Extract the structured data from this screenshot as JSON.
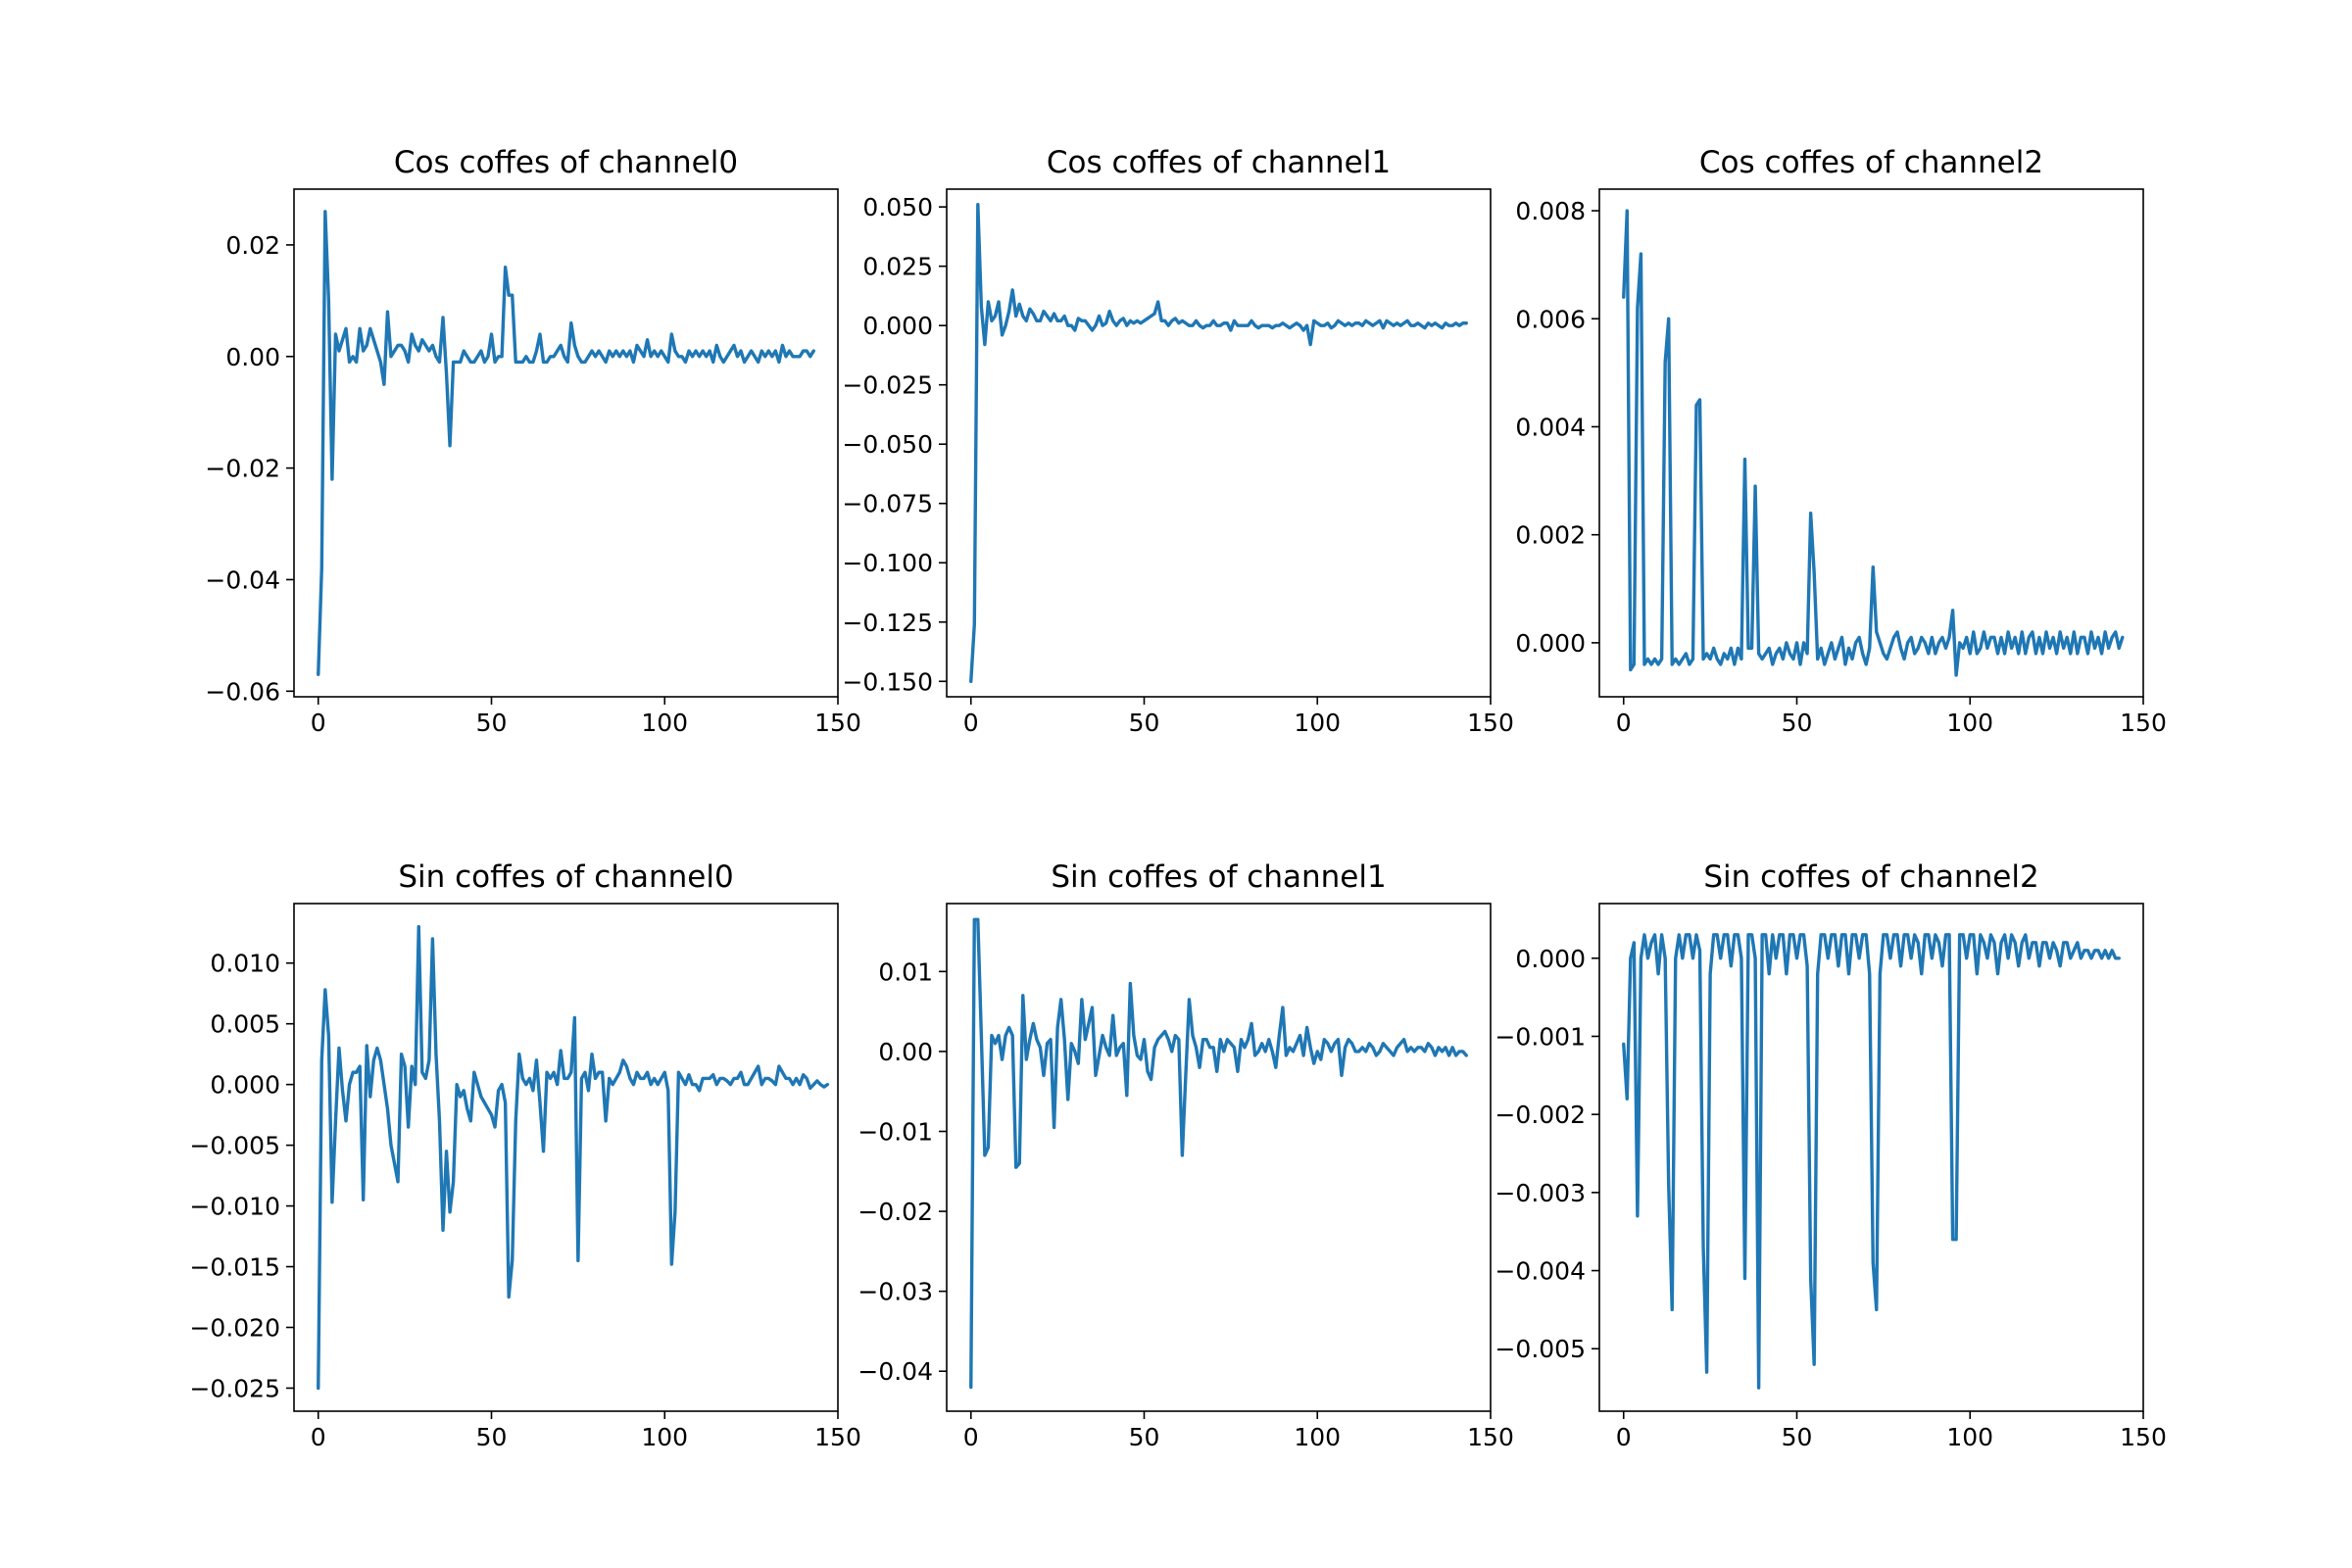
{
  "colors": {
    "line": "#1f77b4",
    "background": "#ffffff",
    "axes": "#000000"
  },
  "chart_data": [
    {
      "type": "line",
      "title": "Cos coffes of channel0",
      "xlabel": "",
      "ylabel": "",
      "xlim": [
        -7,
        150
      ],
      "ylim": [
        -0.061,
        0.03
      ],
      "xticks": [
        0,
        50,
        100,
        150
      ],
      "yticks": [
        0.02,
        0.0,
        -0.02,
        -0.04,
        -0.06
      ],
      "ytick_labels": [
        "0.02",
        "0.00",
        "−0.02",
        "−0.04",
        "−0.06"
      ],
      "x_start": 0,
      "values": [
        -0.057,
        -0.038,
        0.026,
        0.01,
        -0.022,
        0.004,
        0.001,
        0.003,
        0.005,
        -0.001,
        0.0,
        -0.001,
        0.005,
        0.001,
        0.002,
        0.005,
        0.003,
        0.001,
        -0.001,
        -0.005,
        0.008,
        0.0,
        0.001,
        0.002,
        0.002,
        0.001,
        -0.001,
        0.004,
        0.002,
        0.001,
        0.003,
        0.002,
        0.001,
        0.002,
        0.0,
        -0.001,
        0.007,
        -0.003,
        -0.016,
        -0.001,
        -0.001,
        -0.001,
        0.001,
        0.0,
        -0.001,
        -0.001,
        0.0,
        0.001,
        -0.001,
        0.0,
        0.004,
        -0.001,
        0.0,
        0.0,
        0.016,
        0.011,
        0.011,
        -0.001,
        -0.001,
        -0.001,
        0.0,
        -0.001,
        -0.001,
        0.001,
        0.004,
        -0.001,
        -0.001,
        0.0,
        0.0,
        0.001,
        0.002,
        0.0,
        -0.001,
        0.006,
        0.002,
        0.0,
        -0.001,
        -0.001,
        0.0,
        0.001,
        0.0,
        0.001,
        0.0,
        -0.001,
        0.001,
        0.0,
        0.001,
        0.0,
        0.001,
        0.0,
        0.001,
        -0.001,
        0.002,
        0.001,
        0.0,
        0.003,
        0.0,
        0.001,
        0.0,
        0.001,
        0.0,
        -0.001,
        0.004,
        0.001,
        0.0,
        0.0,
        -0.001,
        0.001,
        0.0,
        0.001,
        0.0,
        0.001,
        0.0,
        0.001,
        -0.001,
        0.002,
        0.0,
        -0.001,
        0.0,
        0.001,
        0.002,
        0.0,
        0.001,
        -0.001,
        0.0,
        0.001,
        0.0,
        -0.001,
        0.001,
        0.0,
        0.001,
        0.0,
        0.001,
        -0.001,
        0.002,
        0.0,
        0.001,
        0.0,
        0.0,
        0.0,
        0.001,
        0.001,
        0.0,
        0.001
      ]
    },
    {
      "type": "line",
      "title": "Cos coffes of channel1",
      "xlabel": "",
      "ylabel": "",
      "xlim": [
        -7,
        150
      ],
      "ylim": [
        -0.1565,
        0.0575
      ],
      "xticks": [
        0,
        50,
        100,
        150
      ],
      "yticks": [
        0.05,
        0.025,
        0.0,
        -0.025,
        -0.05,
        -0.075,
        -0.1,
        -0.125,
        -0.15
      ],
      "ytick_labels": [
        "0.050",
        "0.025",
        "0.000",
        "−0.025",
        "−0.050",
        "−0.075",
        "−0.100",
        "−0.125",
        "−0.150"
      ],
      "x_start": 0,
      "values": [
        -0.15,
        -0.126,
        0.051,
        0.008,
        -0.008,
        0.01,
        0.002,
        0.004,
        0.01,
        -0.004,
        0.0,
        0.006,
        0.015,
        0.004,
        0.009,
        0.004,
        0.002,
        0.007,
        0.005,
        0.002,
        0.002,
        0.006,
        0.004,
        0.002,
        0.005,
        0.002,
        0.002,
        0.004,
        0.0,
        0.0,
        -0.002,
        0.003,
        0.002,
        0.002,
        0.0,
        -0.002,
        0.0,
        0.004,
        0.0,
        0.001,
        0.006,
        0.002,
        0.0,
        0.002,
        0.003,
        0.0,
        0.002,
        0.001,
        0.002,
        0.001,
        0.002,
        0.003,
        0.004,
        0.005,
        0.01,
        0.002,
        0.002,
        0.0,
        0.002,
        0.003,
        0.001,
        0.002,
        0.001,
        0.0,
        0.0,
        0.002,
        0.0,
        -0.001,
        0.0,
        0.0,
        0.002,
        0.0,
        0.0,
        0.001,
        0.001,
        -0.002,
        0.002,
        0.0,
        0.0,
        0.0,
        0.0,
        0.002,
        0.0,
        -0.001,
        0.0,
        0.0,
        0.0,
        -0.001,
        0.0,
        0.0,
        0.001,
        0.0,
        -0.001,
        0.0,
        0.001,
        0.0,
        -0.002,
        0.0,
        -0.008,
        0.002,
        0.001,
        0.0,
        0.0,
        0.001,
        -0.001,
        0.0,
        0.002,
        0.001,
        0.0,
        0.001,
        0.0,
        0.001,
        0.001,
        0.0,
        0.002,
        0.001,
        0.0,
        0.001,
        0.002,
        -0.001,
        0.002,
        0.001,
        0.0,
        0.001,
        0.0,
        0.001,
        0.002,
        0.0,
        0.0,
        0.001,
        0.0,
        -0.001,
        0.001,
        0.0,
        0.001,
        0.0,
        -0.001,
        0.001,
        0.0,
        0.0,
        0.001,
        0.0,
        0.001,
        0.001
      ]
    },
    {
      "type": "line",
      "title": "Cos coffes of channel2",
      "xlabel": "",
      "ylabel": "",
      "xlim": [
        -7,
        150
      ],
      "ylim": [
        -0.001,
        0.0084
      ],
      "xticks": [
        0,
        50,
        100,
        150
      ],
      "yticks": [
        0.008,
        0.006,
        0.004,
        0.002,
        0.0
      ],
      "ytick_labels": [
        "0.008",
        "0.006",
        "0.004",
        "0.002",
        "0.000"
      ],
      "x_start": 0,
      "values": [
        0.0064,
        0.008,
        -0.0005,
        -0.0004,
        0.0062,
        0.0072,
        -0.0004,
        -0.0003,
        -0.0004,
        -0.0003,
        -0.0004,
        -0.0003,
        0.0052,
        0.006,
        -0.0004,
        -0.0003,
        -0.0004,
        -0.0003,
        -0.0002,
        -0.0004,
        -0.0003,
        0.0044,
        0.0045,
        -0.0003,
        -0.0002,
        -0.0003,
        -0.0001,
        -0.0003,
        -0.0004,
        -0.0002,
        -0.0003,
        -0.0001,
        -0.0004,
        -0.0001,
        -0.0003,
        0.0034,
        -0.0001,
        -0.0001,
        0.0029,
        -0.0002,
        -0.0003,
        -0.0002,
        -0.0001,
        -0.0004,
        -0.0002,
        -0.0001,
        -0.0003,
        0.0,
        -0.0002,
        -0.0003,
        0.0,
        -0.0004,
        0.0,
        -0.0002,
        0.0024,
        0.0013,
        -0.0003,
        -0.0001,
        -0.0004,
        -0.0002,
        0.0,
        -0.0003,
        -0.0001,
        0.0001,
        -0.0004,
        -0.0001,
        -0.0003,
        0.0,
        0.0001,
        -0.0002,
        -0.0004,
        -0.0001,
        0.0014,
        0.0002,
        0.0,
        -0.0002,
        -0.0003,
        -0.0001,
        0.0001,
        0.0002,
        -0.0001,
        -0.0003,
        0.0,
        0.0001,
        -0.0002,
        -0.0001,
        0.0001,
        0.0,
        -0.0002,
        0.0001,
        -0.0002,
        0.0,
        0.0001,
        -0.0001,
        0.0001,
        0.0006,
        -0.0006,
        0.0,
        -0.0001,
        0.0001,
        -0.0002,
        0.0002,
        -0.0002,
        -0.0001,
        0.0002,
        -0.0001,
        0.0001,
        0.0001,
        -0.0002,
        0.0001,
        -0.0002,
        0.0002,
        -0.0001,
        0.0001,
        -0.0002,
        0.0002,
        -0.0002,
        0.0001,
        0.0002,
        -0.0002,
        0.0001,
        -0.0002,
        0.0002,
        -0.0001,
        0.0001,
        -0.0002,
        0.0002,
        -0.0001,
        0.0001,
        -0.0002,
        0.0002,
        -0.0002,
        0.0001,
        0.0001,
        -0.0002,
        0.0002,
        -0.0001,
        0.0001,
        -0.0002,
        0.0002,
        -0.0001,
        0.0001,
        0.0002,
        -0.0001,
        0.0001
      ]
    },
    {
      "type": "line",
      "title": "Sin coffes of channel0",
      "xlabel": "",
      "ylabel": "",
      "xlim": [
        -7,
        150
      ],
      "ylim": [
        -0.0269,
        0.0149
      ],
      "xticks": [
        0,
        50,
        100,
        150
      ],
      "yticks": [
        0.01,
        0.005,
        0.0,
        -0.005,
        -0.01,
        -0.015,
        -0.02,
        -0.025
      ],
      "ytick_labels": [
        "0.010",
        "0.005",
        "0.000",
        "−0.005",
        "−0.010",
        "−0.015",
        "−0.020",
        "−0.025"
      ],
      "x_start": 0,
      "values": [
        -0.025,
        0.002,
        0.0078,
        0.004,
        -0.0097,
        -0.003,
        0.003,
        -0.0005,
        -0.003,
        0.0,
        0.001,
        0.001,
        0.0015,
        -0.0095,
        0.0032,
        -0.001,
        0.002,
        0.003,
        0.002,
        0.0,
        -0.002,
        -0.005,
        -0.0065,
        -0.008,
        0.0025,
        0.0015,
        -0.0035,
        0.0015,
        0.0,
        0.013,
        0.001,
        0.0005,
        0.002,
        0.012,
        0.0025,
        -0.003,
        -0.012,
        -0.0055,
        -0.0105,
        -0.008,
        0.0,
        -0.001,
        -0.0005,
        -0.002,
        -0.003,
        0.001,
        0.0,
        -0.001,
        -0.0015,
        -0.002,
        -0.0025,
        -0.0035,
        -0.0005,
        0.0,
        -0.0015,
        -0.0175,
        -0.0145,
        -0.003,
        0.0025,
        0.0005,
        0.0,
        0.0005,
        -0.0005,
        0.002,
        -0.0015,
        -0.0055,
        0.001,
        0.0005,
        0.001,
        0.0,
        0.0028,
        0.0005,
        0.0005,
        0.001,
        0.0055,
        -0.0145,
        0.0005,
        0.001,
        -0.0005,
        0.0025,
        0.0005,
        0.001,
        0.001,
        -0.003,
        0.0005,
        0.0,
        0.0005,
        0.001,
        0.002,
        0.0015,
        0.0005,
        0.0,
        0.001,
        0.0005,
        0.0005,
        0.001,
        0.0,
        0.0005,
        0.0,
        0.0005,
        0.001,
        -0.0005,
        -0.0148,
        -0.0105,
        0.001,
        0.0005,
        0.0,
        0.0008,
        0.0,
        0.0,
        -0.0005,
        0.0005,
        0.0005,
        0.0005,
        0.0008,
        0.0,
        0.0005,
        0.0005,
        0.0003,
        0.0,
        0.0005,
        0.0005,
        0.001,
        0.0,
        0.0,
        0.0005,
        0.001,
        0.0015,
        0.0,
        0.0005,
        0.0005,
        0.0003,
        0.0,
        0.0015,
        0.001,
        0.0005,
        0.0005,
        0.0,
        0.0005,
        0.0,
        0.0008,
        0.0005,
        -0.0003,
        0.0,
        0.0003,
        0.0,
        -0.0002,
        0.0
      ]
    },
    {
      "type": "line",
      "title": "Sin coffes of channel1",
      "xlabel": "",
      "ylabel": "",
      "xlim": [
        -7,
        150
      ],
      "ylim": [
        -0.045,
        0.0185
      ],
      "xticks": [
        0,
        50,
        100,
        150
      ],
      "yticks": [
        0.01,
        0.0,
        -0.01,
        -0.02,
        -0.03,
        -0.04
      ],
      "ytick_labels": [
        "0.01",
        "0.00",
        "−0.01",
        "−0.02",
        "−0.03",
        "−0.04"
      ],
      "x_start": 0,
      "values": [
        -0.042,
        0.0165,
        0.0165,
        0.002,
        -0.013,
        -0.012,
        0.002,
        0.001,
        0.002,
        -0.001,
        0.002,
        0.003,
        0.002,
        -0.0145,
        -0.014,
        0.007,
        -0.001,
        0.0015,
        0.0035,
        0.0015,
        0.0005,
        -0.003,
        0.001,
        0.0015,
        -0.0095,
        0.003,
        0.0065,
        0.0015,
        -0.006,
        0.001,
        0.0,
        -0.0015,
        0.0065,
        0.0015,
        0.0035,
        0.0055,
        -0.003,
        -0.0005,
        0.002,
        0.0005,
        -0.0005,
        0.0045,
        -0.0005,
        0.0005,
        0.001,
        -0.0055,
        0.0085,
        0.002,
        -0.0005,
        -0.001,
        0.0015,
        -0.0025,
        -0.0035,
        0.0005,
        0.0015,
        0.002,
        0.0025,
        0.0015,
        0.0,
        0.002,
        0.0015,
        -0.013,
        -0.003,
        0.0065,
        0.002,
        0.0005,
        -0.002,
        0.0015,
        0.0015,
        0.0005,
        0.0005,
        -0.0025,
        0.0015,
        0.0,
        0.0015,
        0.001,
        0.0005,
        -0.0025,
        0.0015,
        0.0005,
        0.0015,
        0.0035,
        -0.0005,
        0.0,
        0.001,
        0.0,
        0.0015,
        0.0,
        -0.002,
        0.002,
        0.0055,
        -0.0005,
        0.0005,
        0.0,
        0.001,
        0.002,
        -0.0005,
        0.003,
        0.0005,
        -0.0015,
        0.0,
        -0.001,
        0.0015,
        0.001,
        0.0,
        0.001,
        0.0015,
        -0.003,
        0.0005,
        0.0015,
        0.001,
        0.0,
        0.0,
        0.0005,
        0.0,
        0.001,
        0.0005,
        -0.0005,
        0.0,
        0.001,
        0.0005,
        0.0,
        -0.0005,
        0.0005,
        0.001,
        0.0015,
        0.0,
        0.0005,
        0.0,
        0.0005,
        0.0005,
        0.0,
        0.001,
        0.0005,
        -0.0005,
        0.0005,
        0.0,
        0.0005,
        -0.0005,
        0.0005,
        -0.0005,
        0.0,
        0.0,
        -0.0005
      ]
    },
    {
      "type": "line",
      "title": "Sin coffes of channel2",
      "xlabel": "",
      "ylabel": "",
      "xlim": [
        -7,
        150
      ],
      "ylim": [
        -0.0058,
        0.0007
      ],
      "xticks": [
        0,
        50,
        100,
        150
      ],
      "yticks": [
        0.0,
        -0.001,
        -0.002,
        -0.003,
        -0.004,
        -0.005
      ],
      "ytick_labels": [
        "0.000",
        "−0.001",
        "−0.002",
        "−0.003",
        "−0.004",
        "−0.005"
      ],
      "x_start": 0,
      "values": [
        -0.0011,
        -0.0018,
        0.0,
        0.0002,
        -0.0033,
        0.0,
        0.0003,
        0.0,
        0.0002,
        0.0003,
        -0.0002,
        0.0003,
        0.0,
        -0.0029,
        -0.0045,
        0.0,
        0.0003,
        0.0,
        0.0003,
        0.0003,
        0.0,
        0.0003,
        0.0001,
        -0.0037,
        -0.0053,
        -0.0002,
        0.0003,
        0.0003,
        0.0,
        0.0003,
        0.0003,
        -0.0001,
        0.0003,
        0.0003,
        0.0,
        -0.0041,
        0.0003,
        0.0003,
        0.0,
        -0.0055,
        0.0003,
        0.0003,
        -0.0002,
        0.0003,
        0.0,
        0.0003,
        0.0003,
        -0.0002,
        0.0003,
        0.0003,
        0.0,
        0.0003,
        0.0003,
        -0.0001,
        -0.0041,
        -0.0052,
        -0.0002,
        0.0003,
        0.0003,
        0.0,
        0.0003,
        0.0003,
        -0.0001,
        0.0003,
        0.0003,
        -0.0002,
        0.0003,
        0.0003,
        0.0,
        0.0003,
        0.0003,
        -0.0002,
        -0.0039,
        -0.0045,
        -0.0002,
        0.0003,
        0.0003,
        0.0,
        0.0003,
        0.0003,
        -0.0001,
        0.0003,
        0.0003,
        0.0,
        0.0003,
        0.0002,
        -0.0002,
        0.0003,
        0.0003,
        0.0,
        0.0003,
        0.0002,
        -0.0001,
        0.0003,
        0.0003,
        -0.0036,
        -0.0036,
        0.0003,
        0.0003,
        0.0,
        0.0003,
        0.0003,
        -0.0002,
        0.0003,
        0.0002,
        0.0,
        0.0003,
        0.0002,
        -0.0002,
        0.0002,
        0.0003,
        0.0,
        0.0003,
        0.0002,
        -0.0001,
        0.0002,
        0.0003,
        0.0,
        0.0002,
        0.0002,
        -0.0001,
        0.0002,
        0.0002,
        0.0,
        0.0002,
        0.0001,
        -0.0001,
        0.0002,
        0.0002,
        0.0,
        0.0001,
        0.0002,
        0.0,
        0.0001,
        0.0001,
        0.0,
        0.0001,
        0.0001,
        0.0,
        0.0001,
        0.0,
        0.0001,
        0.0,
        0.0
      ]
    }
  ]
}
